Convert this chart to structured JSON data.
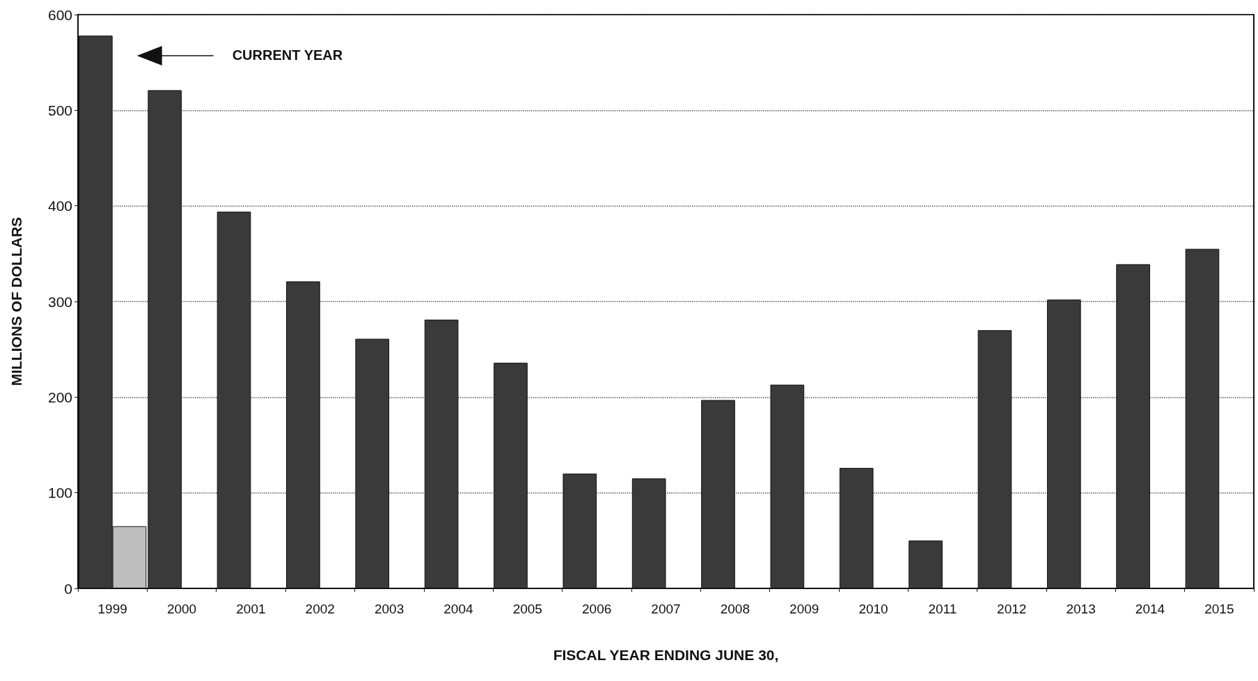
{
  "chart_data": {
    "type": "bar",
    "xlabel": "FISCAL YEAR ENDING JUNE 30,",
    "ylabel": "MILLIONS OF DOLLARS",
    "categories": [
      "1999",
      "2000",
      "2001",
      "2002",
      "2003",
      "2004",
      "2005",
      "2006",
      "2007",
      "2008",
      "2009",
      "2010",
      "2011",
      "2012",
      "2013",
      "2014",
      "2015"
    ],
    "series": [
      {
        "color": "#3a3a3a",
        "values": [
          578,
          521,
          394,
          321,
          261,
          281,
          236,
          120,
          115,
          197,
          213,
          126,
          50,
          270,
          302,
          339,
          355
        ]
      },
      {
        "color": "#bdbdbd",
        "values": [
          65,
          null,
          null,
          null,
          null,
          null,
          null,
          null,
          null,
          null,
          null,
          null,
          null,
          null,
          null,
          null,
          null
        ]
      }
    ],
    "ylim": [
      0,
      600
    ],
    "yticks": [
      0,
      100,
      200,
      300,
      400,
      500,
      600
    ],
    "grid": "y",
    "annotations": [
      "CURRENT YEAR"
    ]
  }
}
